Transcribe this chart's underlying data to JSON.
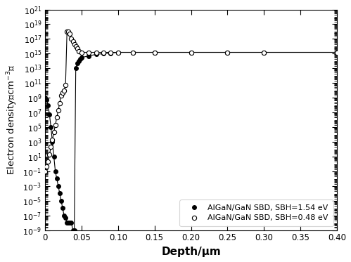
{
  "title": "",
  "xlabel": "Depth/μm",
  "ylabel": "Electron density（cm⁻³）",
  "xlim": [
    0,
    0.4
  ],
  "ylim": [
    1e-09,
    1e+21
  ],
  "legend1": "AlGaN/GaN SBD, SBH=1.54 eV",
  "legend2": "AlGaN/GaN SBD, SBH=0.48 eV",
  "series1_x": [
    0.0,
    0.002,
    0.004,
    0.006,
    0.008,
    0.01,
    0.012,
    0.014,
    0.016,
    0.018,
    0.02,
    0.022,
    0.024,
    0.026,
    0.028,
    0.03,
    0.032,
    0.034,
    0.036,
    0.038,
    0.04,
    0.042,
    0.044,
    0.046,
    0.048,
    0.05,
    0.06,
    0.07,
    0.08,
    0.09,
    0.1,
    0.12,
    0.15,
    0.2,
    0.25,
    0.3,
    0.4
  ],
  "series1_y": [
    1000000000.0,
    500000000.0,
    100000000.0,
    5000000.0,
    100000.0,
    1000.0,
    10.0,
    0.1,
    0.01,
    0.001,
    0.0001,
    1e-05,
    1e-06,
    1e-07,
    5e-08,
    1e-08,
    1e-08,
    1e-08,
    1e-08,
    1e-09,
    1e-09,
    10000000000000.0,
    50000000000000.0,
    100000000000000.0,
    200000000000000.0,
    300000000000000.0,
    500000000000000.0,
    800000000000000.0,
    1000000000000000.0,
    1200000000000000.0,
    1500000000000000.0,
    1500000000000000.0,
    1500000000000000.0,
    1500000000000000.0,
    1500000000000000.0,
    1500000000000000.0,
    1500000000000000.0
  ],
  "series2_x": [
    0.0,
    0.002,
    0.004,
    0.006,
    0.008,
    0.01,
    0.012,
    0.014,
    0.016,
    0.018,
    0.02,
    0.022,
    0.024,
    0.026,
    0.028,
    0.03,
    0.032,
    0.034,
    0.036,
    0.038,
    0.04,
    0.042,
    0.044,
    0.046,
    0.05,
    0.06,
    0.07,
    0.08,
    0.09,
    0.1,
    0.12,
    0.15,
    0.2,
    0.25,
    0.3,
    0.4
  ],
  "series2_y": [
    0.1,
    0.5,
    2,
    20,
    200,
    2000,
    20000,
    200000,
    2000000,
    20000000,
    200000000,
    2000000000,
    5000000000,
    10000000000,
    50000000000,
    1e+18,
    1e+18,
    5e+17,
    1e+17,
    5e+16,
    2e+16,
    1e+16,
    5000000000000000.0,
    2000000000000000.0,
    1500000000000000.0,
    1500000000000000.0,
    1500000000000000.0,
    1500000000000000.0,
    1500000000000000.0,
    1500000000000000.0,
    1500000000000000.0,
    1500000000000000.0,
    1500000000000000.0,
    1500000000000000.0,
    1500000000000000.0,
    1500000000000000.0
  ],
  "yticks": [
    1e-09,
    1e-07,
    1e-05,
    0.001,
    0.1,
    10.0,
    1000.0,
    100000.0,
    10000000.0,
    1000000000.0,
    100000000000.0,
    10000000000000.0,
    1000000000000000.0,
    1e+17,
    1e+19,
    1e+21
  ],
  "ytick_labels": [
    "10$^{-9}$",
    "10$^{-7}$",
    "10$^{-5}$",
    "10$^{-3}$",
    "10$^{-1}$",
    "10$^{1}$",
    "10$^{3}$",
    "10$^{5}$",
    "10$^{7}$",
    "10$^{9}$",
    "10$^{11}$",
    "10$^{13}$",
    "10$^{15}$",
    "10$^{17}$",
    "10$^{19}$",
    "10$^{21}$"
  ],
  "xticks": [
    0,
    0.05,
    0.1,
    0.15,
    0.2,
    0.25,
    0.3,
    0.35,
    0.4
  ],
  "xtick_labels": [
    "0",
    "0.05",
    "0.10",
    "0.15",
    "0.20",
    "0.25",
    "0.30",
    "0.35",
    "0.40"
  ]
}
